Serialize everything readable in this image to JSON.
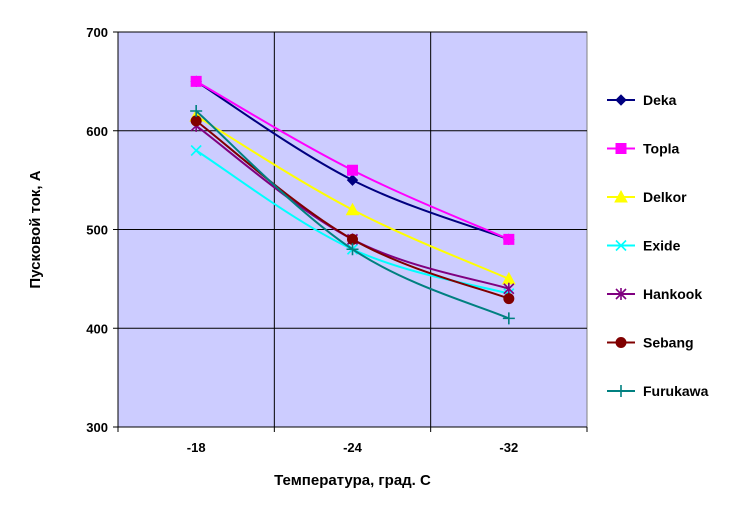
{
  "chart_data": {
    "type": "line",
    "title": "",
    "xlabel": "Температура, град. С",
    "ylabel": "Пусковой ток, А",
    "categories": [
      "-18",
      "-24",
      "-32"
    ],
    "ylim": [
      300,
      700
    ],
    "yticks": [
      "300",
      "400",
      "500",
      "600",
      "700"
    ],
    "grid": true,
    "plot_background": "#ccccff",
    "legend_position": "right",
    "series": [
      {
        "name": "Deka",
        "values": [
          650,
          550,
          490
        ],
        "color": "#000080",
        "marker": "diamond"
      },
      {
        "name": "Topla",
        "values": [
          650,
          560,
          490
        ],
        "color": "#ff00ff",
        "marker": "square"
      },
      {
        "name": "Delkor",
        "values": [
          615,
          520,
          450
        ],
        "color": "#ffff00",
        "marker": "triangle"
      },
      {
        "name": "Exide",
        "values": [
          580,
          480,
          435
        ],
        "color": "#00ffff",
        "marker": "x"
      },
      {
        "name": "Hankook",
        "values": [
          605,
          490,
          440
        ],
        "color": "#800080",
        "marker": "star"
      },
      {
        "name": "Sebang",
        "values": [
          610,
          490,
          430
        ],
        "color": "#800000",
        "marker": "circle"
      },
      {
        "name": "Furukawa",
        "values": [
          620,
          480,
          410
        ],
        "color": "#008080",
        "marker": "plus"
      }
    ]
  }
}
